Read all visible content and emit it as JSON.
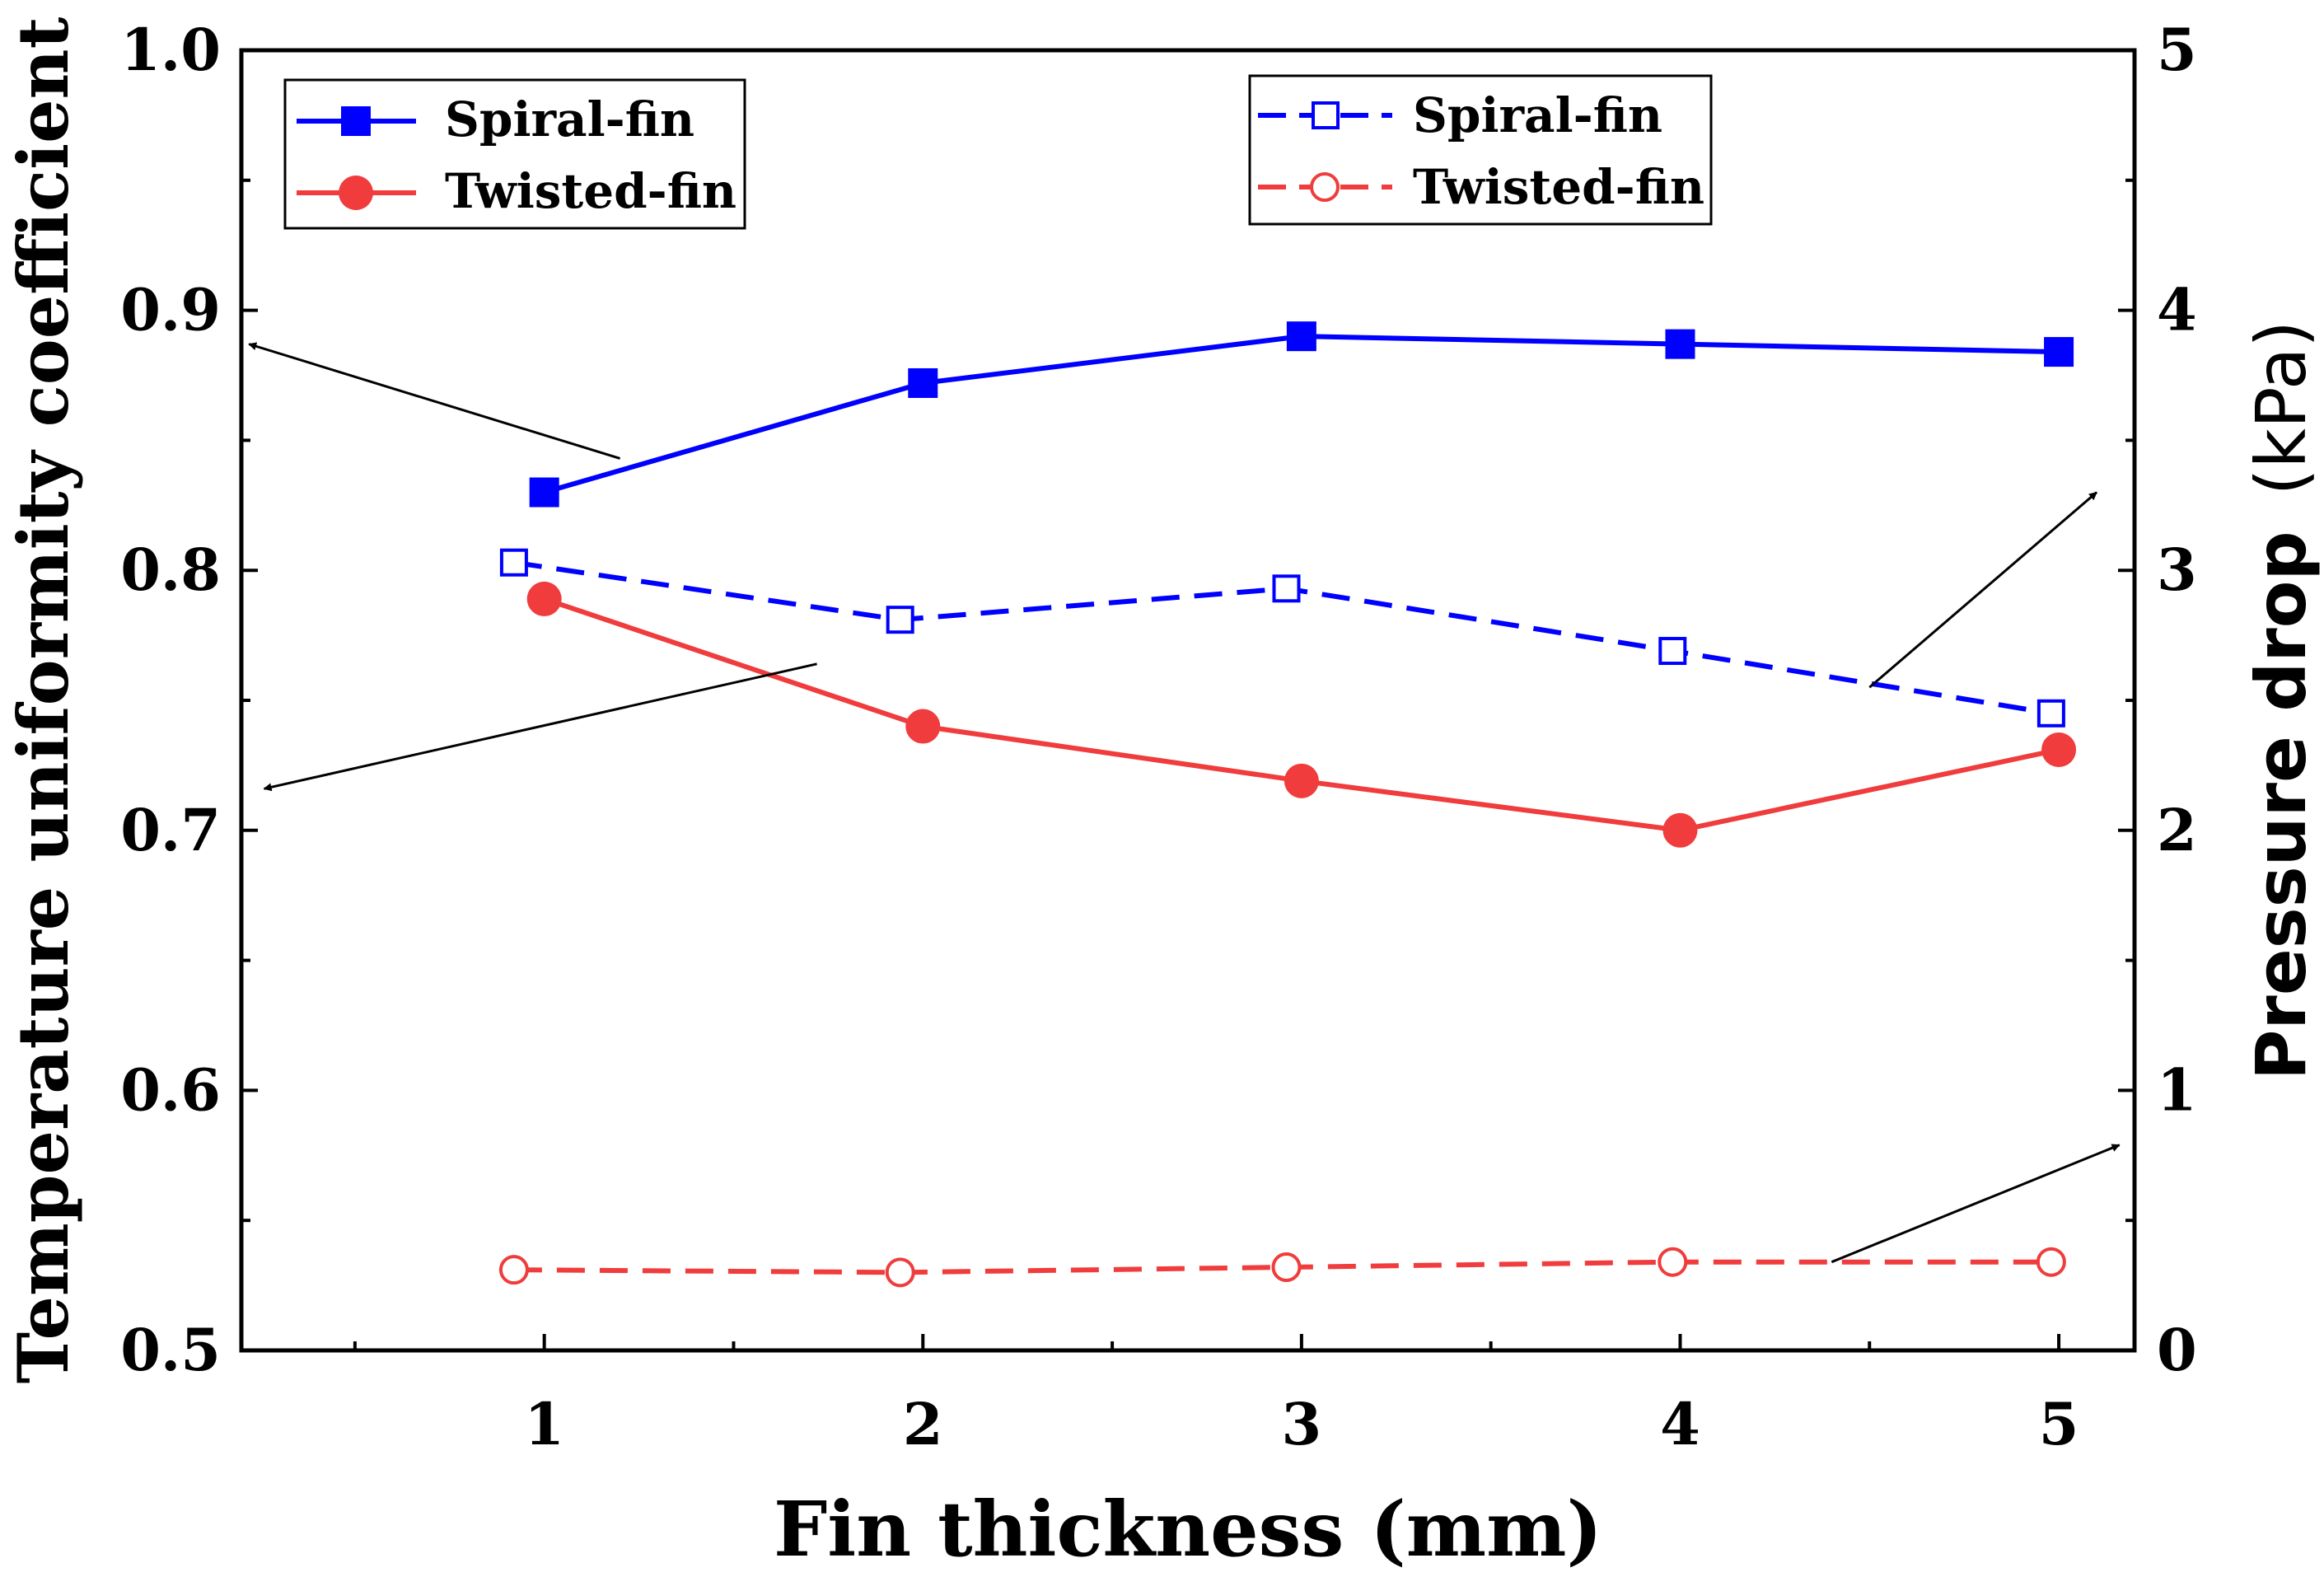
{
  "chart_data": {
    "type": "line",
    "xlabel": "Fin thickness (mm)",
    "ylabel_left": "Temperature uniformity coefficient",
    "ylabel_right_bold": "Pressure drop",
    "ylabel_right_unit": "(kPa)",
    "x_ticks": [
      "1",
      "2",
      "3",
      "4",
      "5"
    ],
    "y_left_ticks": [
      "0.5",
      "0.6",
      "0.7",
      "0.8",
      "0.9",
      "1.0"
    ],
    "y_right_ticks": [
      "0",
      "1",
      "2",
      "3",
      "4",
      "5"
    ],
    "xlim": [
      0.2,
      5.2
    ],
    "ylim_left": [
      0.5,
      1.0
    ],
    "ylim_right": [
      0,
      5
    ],
    "grid": false,
    "series": [
      {
        "name": "Spiral-fin",
        "axis": "left",
        "color": "#0000ff",
        "line": "solid",
        "marker": "filled-square",
        "x": [
          1,
          2,
          3,
          4,
          5
        ],
        "values": [
          0.83,
          0.872,
          0.89,
          0.887,
          0.884
        ]
      },
      {
        "name": "Twisted-fin",
        "axis": "left",
        "color": "#f03c3c",
        "line": "solid",
        "marker": "filled-circle",
        "x": [
          1,
          2,
          3,
          4,
          5
        ],
        "values": [
          0.789,
          0.74,
          0.719,
          0.7,
          0.731
        ]
      },
      {
        "name": "Spiral-fin",
        "axis": "right",
        "color": "#0000ff",
        "line": "dashed",
        "marker": "open-square",
        "x": [
          0.92,
          1.94,
          2.96,
          3.98,
          4.98
        ],
        "values": [
          3.03,
          2.81,
          2.93,
          2.69,
          2.45
        ]
      },
      {
        "name": "Twisted-fin",
        "axis": "right",
        "color": "#f03c3c",
        "line": "dashed",
        "marker": "open-circle",
        "x": [
          0.92,
          1.94,
          2.96,
          3.98,
          4.98
        ],
        "values": [
          0.31,
          0.3,
          0.32,
          0.34,
          0.34
        ]
      }
    ],
    "legends": [
      {
        "placement": "top-left",
        "entries": [
          "Spiral-fin",
          "Twisted-fin"
        ],
        "series_index": [
          0,
          1
        ]
      },
      {
        "placement": "top-center-right",
        "entries": [
          "Spiral-fin",
          "Twisted-fin"
        ],
        "series_index": [
          2,
          3
        ]
      }
    ],
    "annotations": [
      {
        "type": "arrow",
        "meaning": "Spiral-fin solid curve uses left axis"
      },
      {
        "type": "arrow",
        "meaning": "Twisted-fin solid curve uses left axis"
      },
      {
        "type": "arrow",
        "meaning": "Spiral-fin dashed curve uses right axis"
      },
      {
        "type": "arrow",
        "meaning": "Twisted-fin dashed curve uses right axis"
      }
    ]
  }
}
